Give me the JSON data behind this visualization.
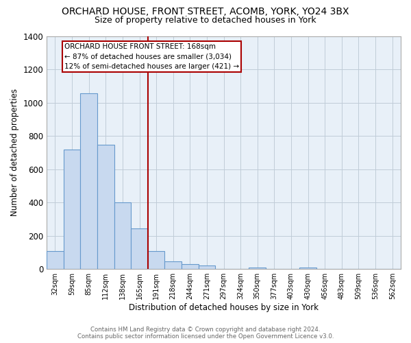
{
  "title": "ORCHARD HOUSE, FRONT STREET, ACOMB, YORK, YO24 3BX",
  "subtitle": "Size of property relative to detached houses in York",
  "xlabel": "Distribution of detached houses by size in York",
  "ylabel": "Number of detached properties",
  "bar_values": [
    107,
    720,
    1057,
    748,
    400,
    242,
    110,
    47,
    28,
    22,
    0,
    0,
    10,
    0,
    0,
    10,
    0,
    0,
    0,
    0,
    0
  ],
  "bar_labels": [
    "32sqm",
    "59sqm",
    "85sqm",
    "112sqm",
    "138sqm",
    "165sqm",
    "191sqm",
    "218sqm",
    "244sqm",
    "271sqm",
    "297sqm",
    "324sqm",
    "350sqm",
    "377sqm",
    "403sqm",
    "430sqm",
    "456sqm",
    "483sqm",
    "509sqm",
    "536sqm",
    "562sqm"
  ],
  "bar_color": "#c8d9ef",
  "bar_edge_color": "#6699cc",
  "vline_color": "#aa0000",
  "ylim": [
    0,
    1400
  ],
  "yticks": [
    0,
    200,
    400,
    600,
    800,
    1000,
    1200,
    1400
  ],
  "annotation_title": "ORCHARD HOUSE FRONT STREET: 168sqm",
  "annotation_line1": "← 87% of detached houses are smaller (3,034)",
  "annotation_line2": "12% of semi-detached houses are larger (421) →",
  "footer1": "Contains HM Land Registry data © Crown copyright and database right 2024.",
  "footer2": "Contains public sector information licensed under the Open Government Licence v3.0.",
  "background_color": "#ffffff",
  "plot_bg_color": "#e8f0f8",
  "grid_color": "#c0ccd8"
}
